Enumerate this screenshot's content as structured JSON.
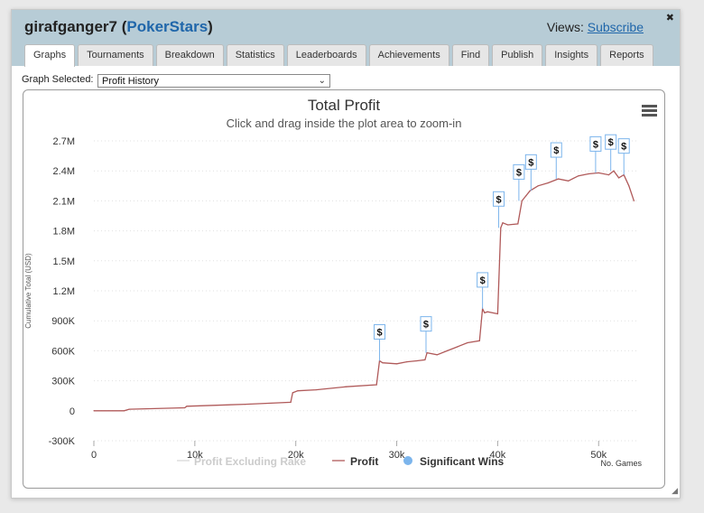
{
  "header": {
    "user": "girafganger7",
    "site": "PokerStars",
    "views_label": "Views:",
    "subscribe_label": "Subscribe",
    "close_icon": "close-icon"
  },
  "tabs": [
    {
      "label": "Graphs",
      "active": true
    },
    {
      "label": "Tournaments"
    },
    {
      "label": "Breakdown"
    },
    {
      "label": "Statistics"
    },
    {
      "label": "Leaderboards"
    },
    {
      "label": "Achievements"
    },
    {
      "label": "Find"
    },
    {
      "label": "Publish"
    },
    {
      "label": "Insights"
    },
    {
      "label": "Reports"
    }
  ],
  "graph_selector": {
    "label": "Graph Selected:",
    "value": "Profit History"
  },
  "chart_data": {
    "type": "line",
    "title": "Total Profit",
    "subtitle": "Click and drag inside the plot area to zoom-in",
    "xlabel": "No. Games",
    "ylabel": "Cumulative Total (USD)",
    "xlim": [
      0,
      54000
    ],
    "ylim": [
      -300000,
      2700000
    ],
    "xticks": [
      0,
      10000,
      20000,
      30000,
      40000,
      50000
    ],
    "xtick_labels": [
      "0",
      "10k",
      "20k",
      "30k",
      "40k",
      "50k"
    ],
    "yticks": [
      -300000,
      0,
      300000,
      600000,
      900000,
      1200000,
      1500000,
      1800000,
      2100000,
      2400000,
      2700000
    ],
    "ytick_labels": [
      "-300K",
      "0",
      "300K",
      "600K",
      "900K",
      "1.2M",
      "1.5M",
      "1.8M",
      "2.1M",
      "2.4M",
      "2.7M"
    ],
    "grid": "horizontal dotted",
    "legend_position": "bottom",
    "legend": [
      {
        "name": "Profit Excluding Rake",
        "hidden": true,
        "color": "#cccccc"
      },
      {
        "name": "Profit",
        "color": "#b05a5a"
      },
      {
        "name": "Significant Wins",
        "color": "#7cb5ec"
      }
    ],
    "series": [
      {
        "name": "Profit",
        "color": "#b05a5a",
        "x": [
          0,
          3000,
          3500,
          9000,
          9200,
          15000,
          19500,
          19700,
          20200,
          22000,
          25000,
          28000,
          28300,
          28600,
          30000,
          31000,
          32000,
          32800,
          33000,
          34000,
          35000,
          36000,
          37000,
          38200,
          38500,
          38700,
          39000,
          40000,
          40300,
          40500,
          41000,
          42000,
          42400,
          42800,
          43200,
          44000,
          45000,
          46000,
          47000,
          48000,
          49000,
          50000,
          51000,
          51500,
          52000,
          52500,
          53000,
          53500
        ],
        "values": [
          0,
          0,
          15000,
          30000,
          45000,
          65000,
          85000,
          180000,
          200000,
          210000,
          240000,
          260000,
          500000,
          480000,
          470000,
          490000,
          500000,
          510000,
          580000,
          560000,
          600000,
          640000,
          680000,
          700000,
          1020000,
          980000,
          990000,
          970000,
          1830000,
          1880000,
          1860000,
          1870000,
          2100000,
          2150000,
          2200000,
          2250000,
          2280000,
          2320000,
          2300000,
          2350000,
          2370000,
          2380000,
          2360000,
          2400000,
          2330000,
          2360000,
          2250000,
          2100000
        ]
      }
    ],
    "significant_wins": [
      {
        "x": 28300,
        "y": 500000,
        "label": "$"
      },
      {
        "x": 32900,
        "y": 580000,
        "label": "$"
      },
      {
        "x": 38500,
        "y": 1020000,
        "label": "$"
      },
      {
        "x": 40100,
        "y": 1830000,
        "label": "$"
      },
      {
        "x": 42100,
        "y": 2100000,
        "label": "$"
      },
      {
        "x": 43300,
        "y": 2200000,
        "label": "$"
      },
      {
        "x": 45800,
        "y": 2320000,
        "label": "$"
      },
      {
        "x": 49700,
        "y": 2380000,
        "label": "$"
      },
      {
        "x": 51200,
        "y": 2400000,
        "label": "$"
      },
      {
        "x": 52500,
        "y": 2360000,
        "label": "$"
      }
    ]
  }
}
